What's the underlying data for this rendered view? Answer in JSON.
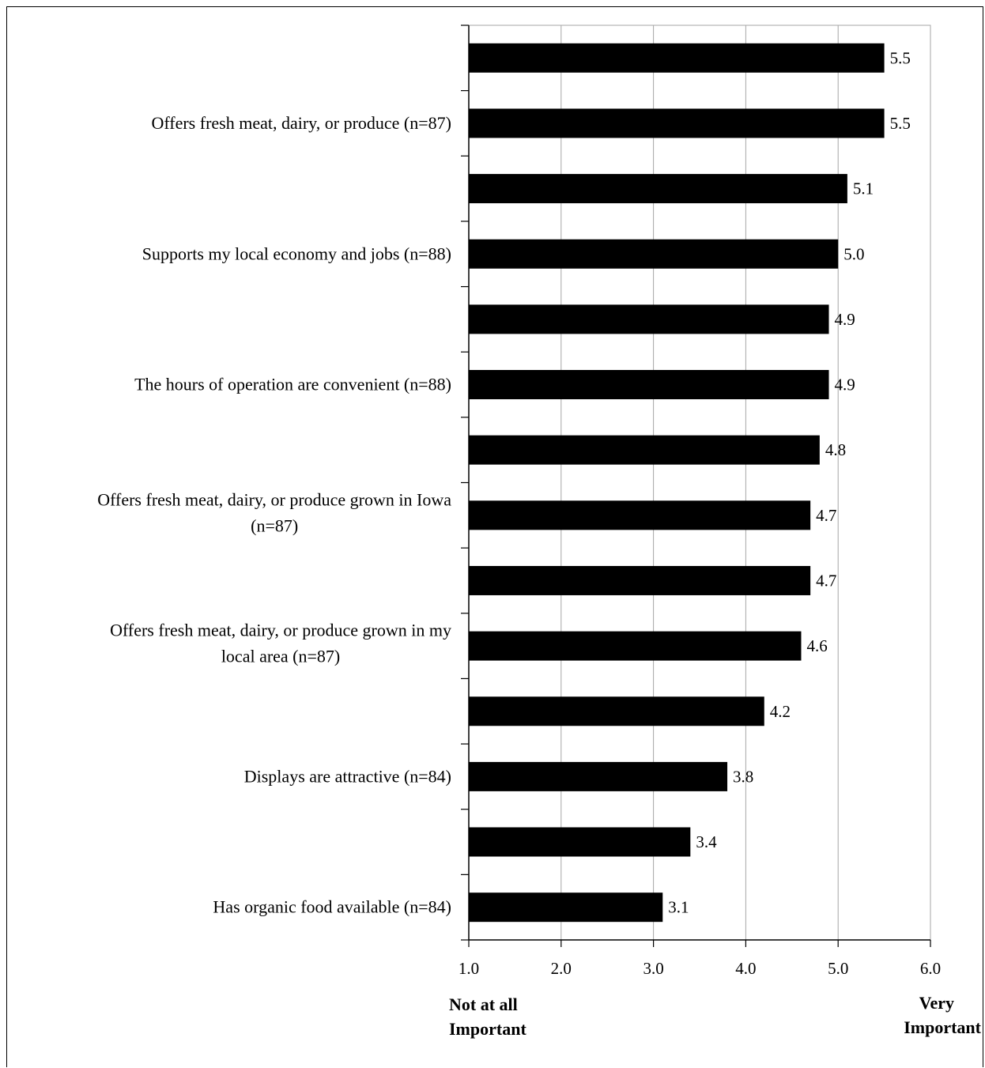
{
  "chart_data": {
    "type": "bar",
    "orientation": "horizontal",
    "categories": [
      "",
      "Offers fresh meat, dairy, or produce (n=87)",
      "",
      "Supports my local economy and jobs (n=88)",
      "",
      "The hours of operation are convenient (n=88)",
      "",
      "Offers fresh meat, dairy, or produce grown in Iowa (n=87)",
      "",
      "Offers fresh meat, dairy, or produce grown in my local area (n=87)",
      "",
      "Displays are attractive (n=84)",
      "",
      "Has organic food available (n=84)"
    ],
    "category_lines": [
      [],
      [
        "Offers fresh meat, dairy, or produce (n=87)"
      ],
      [],
      [
        "Supports my local economy and jobs (n=88)"
      ],
      [],
      [
        "The hours of operation are convenient (n=88)"
      ],
      [],
      [
        "Offers fresh meat, dairy, or produce grown in Iowa",
        "(n=87)"
      ],
      [],
      [
        "Offers fresh meat, dairy, or produce grown in my",
        "local area (n=87)"
      ],
      [],
      [
        "Displays are attractive (n=84)"
      ],
      [],
      [
        "Has organic food available (n=84)"
      ]
    ],
    "values": [
      5.5,
      5.5,
      5.1,
      5.0,
      4.9,
      4.9,
      4.8,
      4.7,
      4.7,
      4.6,
      4.2,
      3.8,
      3.4,
      3.1
    ],
    "value_labels": [
      "5.5",
      "5.5",
      "5.1",
      "5.0",
      "4.9",
      "4.9",
      "4.8",
      "4.7",
      "4.7",
      "4.6",
      "4.2",
      "3.8",
      "3.4",
      "3.1"
    ],
    "xlim": [
      1.0,
      6.0
    ],
    "xticks": [
      1.0,
      2.0,
      3.0,
      4.0,
      5.0,
      6.0
    ],
    "xtick_labels": [
      "1.0",
      "2.0",
      "3.0",
      "4.0",
      "5.0",
      "6.0"
    ],
    "x_low_label": [
      "Not at all",
      "Important"
    ],
    "x_high_label": [
      "Very",
      "Important"
    ],
    "grid": "vertical",
    "bar_color": "#000000",
    "grid_color": "#a6a6a6"
  }
}
